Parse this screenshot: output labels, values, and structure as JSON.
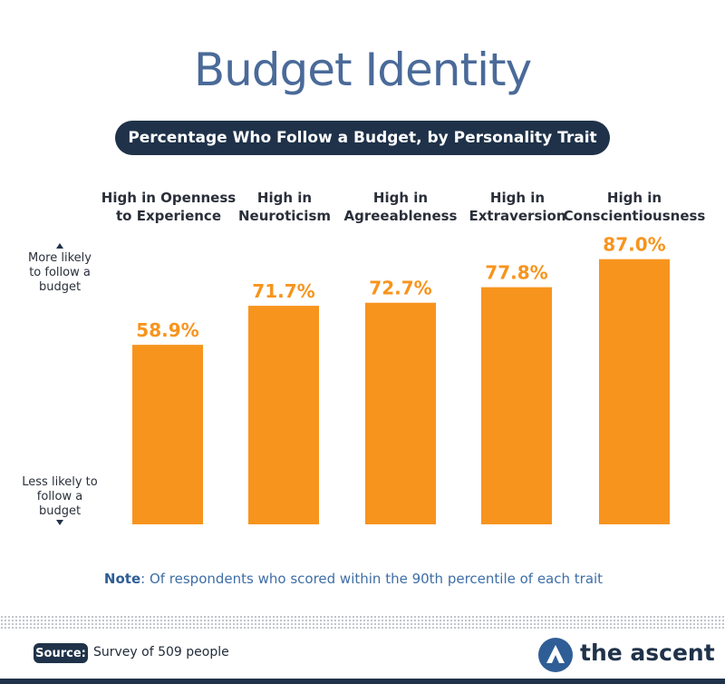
{
  "header": {
    "title": "Budget Identity",
    "subtitle": "Percentage Who Follow a Budget, by Personality Trait"
  },
  "side_labels": {
    "top": "More likely\nto follow a\nbudget",
    "bottom": "Less likely to\nfollow a\nbudget"
  },
  "chart_data": {
    "type": "bar",
    "title": "Budget Identity",
    "subtitle": "Percentage Who Follow a Budget, by Personality Trait",
    "categories": [
      "High in Openness\nto Experience",
      "High in\nNeuroticism",
      "High in\nAgreeableness",
      "High in\nExtraversion",
      "High in\nConscientiousness"
    ],
    "values": [
      58.9,
      71.7,
      72.7,
      77.8,
      87.0
    ],
    "value_labels": [
      "58.9%",
      "71.7%",
      "72.7%",
      "77.8%",
      "87.0%"
    ],
    "ylim": [
      0,
      100
    ],
    "grid": false,
    "bar_color": "#f7941d",
    "label_color": "#f7941d"
  },
  "note": {
    "prefix": "Note",
    "text": ": Of respondents who scored within the 90th percentile of each trait"
  },
  "footer": {
    "source_label": "Source:",
    "source_text": "Survey of 509 people",
    "logo_text": "the ascent",
    "logo_icon": "ascent-logo-icon"
  },
  "colors": {
    "title": "#4a6a99",
    "navy": "#1f3249",
    "accent": "#f7941d",
    "note": "#3e6ea6"
  }
}
